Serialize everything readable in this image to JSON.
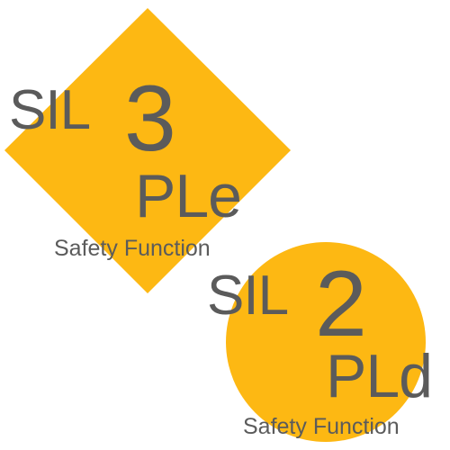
{
  "colors": {
    "badge_fill": "#FDB813",
    "text": "#5B5B5B",
    "background": "#FFFFFF"
  },
  "badges": [
    {
      "shape": "diamond",
      "sil_prefix": "SIL",
      "sil_level": "3",
      "pl": "PLe",
      "caption": "Safety Function"
    },
    {
      "shape": "circle",
      "sil_prefix": "SIL",
      "sil_level": "2",
      "pl": "PLd",
      "caption": "Safety Function"
    }
  ]
}
